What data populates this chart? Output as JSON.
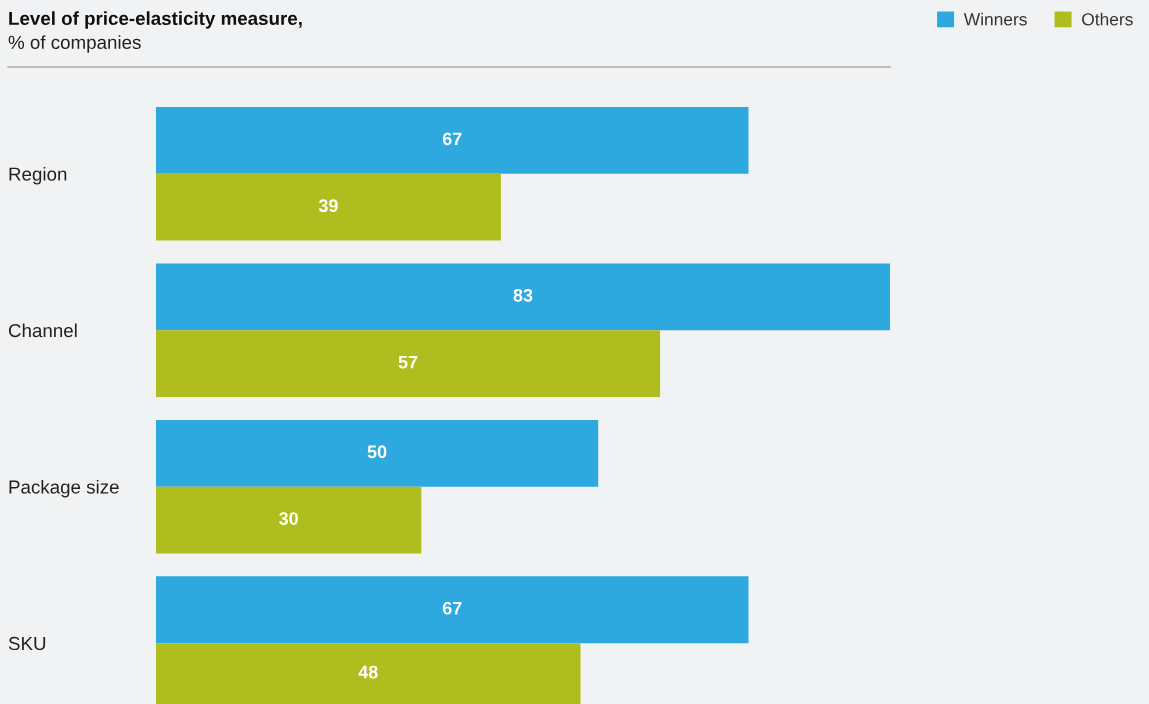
{
  "chart_data": {
    "type": "bar",
    "orientation": "horizontal",
    "title": "Level of price-elasticity measure,",
    "subtitle": "% of companies",
    "categories": [
      "Region",
      "Channel",
      "Package size",
      "SKU"
    ],
    "series": [
      {
        "name": "Winners",
        "color": "#2ea9e0",
        "values": [
          67,
          83,
          50,
          67
        ]
      },
      {
        "name": "Others",
        "color": "#b0bd1e",
        "values": [
          39,
          57,
          30,
          48
        ]
      }
    ],
    "xlim": [
      0,
      83
    ],
    "data_labels": true,
    "legend": "top right",
    "grid": false,
    "tick_labels": "y"
  }
}
